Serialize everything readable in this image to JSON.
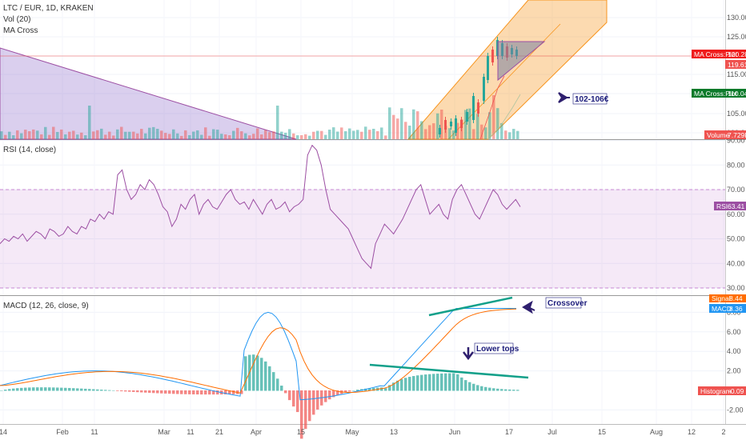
{
  "legend": {
    "symbol": "LTC / EUR, 1D, KRAKEN",
    "vol": "Vol (20)",
    "ma_cross": "MA Cross",
    "rsi": "RSI (14, close)",
    "macd": "MACD (12, 26, close, 9)"
  },
  "badges": {
    "ma_red": "MA Cross:Plot",
    "ma_red_value": "120.28",
    "price": "119.61",
    "ma_green": "MA Cross:Plot",
    "ma_green_value": "110.04",
    "volume": "Volume",
    "volume_value": "7.729K",
    "rsi": "RSI",
    "rsi_value": "63.41",
    "signal": "Signal",
    "signal_value": "8.44",
    "macd": "MACD",
    "macd_value": "8.36",
    "histogram": "Histogram",
    "histogram_value": "-0.09"
  },
  "annotations": {
    "target": "102-106€",
    "crossover": "Crossover",
    "lower_tops": "Lower tops"
  },
  "colors": {
    "bull": "#26a69a",
    "bear": "#ef5350",
    "rsi_line": "#9c4fa3",
    "macd_line": "#2196f3",
    "signal_line": "#ff6d00",
    "channel": "#f7941d",
    "annotation_line": "#12a08a",
    "arrow": "#2e1f6e"
  },
  "chart_data": [
    {
      "type": "line",
      "name": "price",
      "title": "LTC / EUR, 1D, KRAKEN",
      "y_ticks": [
        "130.00",
        "125.00",
        "120.00",
        "115.00",
        "110.00",
        "105.00",
        "100.00"
      ],
      "x_ticks": [
        "14",
        "Feb",
        "11",
        "Mar",
        "11",
        "21",
        "Apr",
        "15",
        "May",
        "13",
        "Jun",
        "17",
        "Jul",
        "15",
        "Aug",
        "12",
        "2"
      ],
      "annotations": [
        "102-106€"
      ]
    },
    {
      "type": "line",
      "name": "rsi",
      "title": "RSI (14, close)",
      "y_ticks": [
        "90.00",
        "80.00",
        "70.00",
        "60.00",
        "50.00",
        "40.00",
        "30.00"
      ],
      "bands": [
        30,
        70
      ],
      "last": 63.41,
      "values": [
        48,
        50,
        49,
        51,
        50,
        52,
        49,
        51,
        53,
        52,
        50,
        54,
        53,
        51,
        52,
        55,
        53,
        52,
        55,
        54,
        58,
        57,
        60,
        58,
        61,
        60,
        76,
        78,
        70,
        66,
        68,
        72,
        70,
        74,
        72,
        68,
        63,
        61,
        55,
        58,
        64,
        62,
        66,
        68,
        60,
        64,
        66,
        63,
        62,
        65,
        68,
        70,
        66,
        64,
        65,
        62,
        66,
        63,
        60,
        64,
        66,
        62,
        63,
        65,
        61,
        63,
        64,
        66,
        84,
        88,
        86,
        80,
        70,
        62,
        60,
        58,
        56,
        54,
        50,
        46,
        42,
        40,
        38,
        48,
        52,
        56,
        54,
        52,
        55,
        58,
        62,
        66,
        70,
        72,
        66,
        60,
        62,
        64,
        60,
        58,
        66,
        70,
        72,
        68,
        64,
        60,
        58,
        62,
        66,
        70,
        68,
        64,
        62,
        64,
        66,
        63
      ]
    },
    {
      "type": "line",
      "name": "macd",
      "title": "MACD (12, 26, close, 9)",
      "y_ticks": [
        "8.00",
        "6.00",
        "4.00",
        "2.00",
        "-2.00"
      ],
      "annotations": [
        "Crossover",
        "Lower tops"
      ],
      "macd_last": 8.36,
      "signal_last": 8.44,
      "histogram_last": -0.09
    }
  ]
}
